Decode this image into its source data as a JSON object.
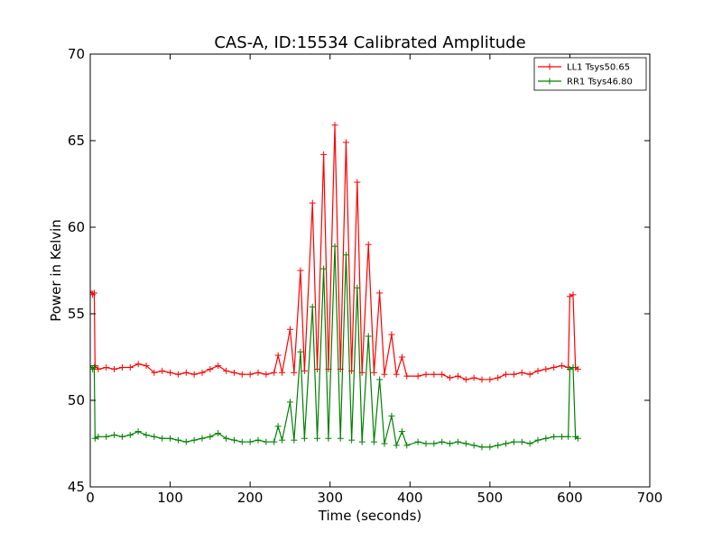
{
  "chart_data": {
    "type": "line",
    "title": "CAS-A, ID:15534 Calibrated Amplitude",
    "xlabel": "Time (seconds)",
    "ylabel": "Power in Kelvin",
    "xlim": [
      0,
      700
    ],
    "ylim": [
      45,
      70
    ],
    "xticks": [
      0,
      100,
      200,
      300,
      400,
      500,
      600,
      700
    ],
    "yticks": [
      45,
      50,
      55,
      60,
      65,
      70
    ],
    "grid": false,
    "legend_position": "top-right",
    "series": [
      {
        "name": "LL1 Tsys50.65",
        "color": "#ff0000",
        "marker": "+",
        "points": [
          [
            0,
            56.3
          ],
          [
            3,
            56.1
          ],
          [
            5,
            56.2
          ],
          [
            6,
            52.0
          ],
          [
            10,
            51.8
          ],
          [
            20,
            51.9
          ],
          [
            30,
            51.8
          ],
          [
            40,
            51.9
          ],
          [
            50,
            51.9
          ],
          [
            60,
            52.1
          ],
          [
            70,
            52.0
          ],
          [
            80,
            51.6
          ],
          [
            90,
            51.7
          ],
          [
            100,
            51.6
          ],
          [
            110,
            51.5
          ],
          [
            120,
            51.6
          ],
          [
            130,
            51.5
          ],
          [
            140,
            51.6
          ],
          [
            150,
            51.8
          ],
          [
            160,
            52.0
          ],
          [
            170,
            51.7
          ],
          [
            180,
            51.6
          ],
          [
            190,
            51.5
          ],
          [
            200,
            51.5
          ],
          [
            210,
            51.6
          ],
          [
            220,
            51.5
          ],
          [
            230,
            51.6
          ],
          [
            235,
            52.6
          ],
          [
            240,
            51.6
          ],
          [
            250,
            54.1
          ],
          [
            255,
            51.6
          ],
          [
            263,
            57.5
          ],
          [
            268,
            51.7
          ],
          [
            278,
            61.4
          ],
          [
            284,
            51.8
          ],
          [
            292,
            64.2
          ],
          [
            298,
            51.8
          ],
          [
            306,
            65.9
          ],
          [
            313,
            51.8
          ],
          [
            320,
            64.9
          ],
          [
            327,
            51.7
          ],
          [
            334,
            62.6
          ],
          [
            340,
            51.6
          ],
          [
            348,
            59.0
          ],
          [
            355,
            51.6
          ],
          [
            362,
            56.2
          ],
          [
            368,
            51.5
          ],
          [
            377,
            53.8
          ],
          [
            383,
            51.5
          ],
          [
            390,
            52.5
          ],
          [
            396,
            51.4
          ],
          [
            410,
            51.4
          ],
          [
            420,
            51.5
          ],
          [
            430,
            51.5
          ],
          [
            440,
            51.5
          ],
          [
            450,
            51.3
          ],
          [
            460,
            51.4
          ],
          [
            470,
            51.2
          ],
          [
            480,
            51.3
          ],
          [
            490,
            51.2
          ],
          [
            500,
            51.2
          ],
          [
            510,
            51.3
          ],
          [
            520,
            51.5
          ],
          [
            530,
            51.5
          ],
          [
            540,
            51.6
          ],
          [
            550,
            51.5
          ],
          [
            560,
            51.7
          ],
          [
            570,
            51.8
          ],
          [
            580,
            51.9
          ],
          [
            590,
            52.0
          ],
          [
            598,
            51.9
          ],
          [
            600,
            56.0
          ],
          [
            604,
            56.1
          ],
          [
            607,
            51.9
          ],
          [
            610,
            51.8
          ]
        ]
      },
      {
        "name": "RR1 Tsys46.80",
        "color": "#008000",
        "marker": "+",
        "points": [
          [
            0,
            52.0
          ],
          [
            3,
            51.8
          ],
          [
            5,
            51.9
          ],
          [
            6,
            47.8
          ],
          [
            10,
            47.9
          ],
          [
            20,
            47.9
          ],
          [
            30,
            48.0
          ],
          [
            40,
            47.9
          ],
          [
            50,
            48.0
          ],
          [
            60,
            48.2
          ],
          [
            70,
            48.0
          ],
          [
            80,
            47.9
          ],
          [
            90,
            47.8
          ],
          [
            100,
            47.8
          ],
          [
            110,
            47.7
          ],
          [
            120,
            47.6
          ],
          [
            130,
            47.7
          ],
          [
            140,
            47.8
          ],
          [
            150,
            47.9
          ],
          [
            160,
            48.1
          ],
          [
            170,
            47.8
          ],
          [
            180,
            47.7
          ],
          [
            190,
            47.6
          ],
          [
            200,
            47.6
          ],
          [
            210,
            47.7
          ],
          [
            220,
            47.6
          ],
          [
            230,
            47.6
          ],
          [
            235,
            48.5
          ],
          [
            240,
            47.7
          ],
          [
            250,
            49.9
          ],
          [
            255,
            47.7
          ],
          [
            263,
            52.8
          ],
          [
            268,
            47.8
          ],
          [
            278,
            55.4
          ],
          [
            284,
            47.8
          ],
          [
            292,
            57.6
          ],
          [
            298,
            47.8
          ],
          [
            306,
            58.9
          ],
          [
            313,
            47.8
          ],
          [
            320,
            58.4
          ],
          [
            327,
            47.7
          ],
          [
            334,
            56.5
          ],
          [
            340,
            47.6
          ],
          [
            348,
            53.7
          ],
          [
            355,
            47.6
          ],
          [
            362,
            51.2
          ],
          [
            368,
            47.5
          ],
          [
            377,
            49.1
          ],
          [
            383,
            47.4
          ],
          [
            390,
            48.2
          ],
          [
            396,
            47.4
          ],
          [
            410,
            47.6
          ],
          [
            420,
            47.5
          ],
          [
            430,
            47.5
          ],
          [
            440,
            47.6
          ],
          [
            450,
            47.5
          ],
          [
            460,
            47.6
          ],
          [
            470,
            47.5
          ],
          [
            480,
            47.4
          ],
          [
            490,
            47.3
          ],
          [
            500,
            47.3
          ],
          [
            510,
            47.4
          ],
          [
            520,
            47.5
          ],
          [
            530,
            47.6
          ],
          [
            540,
            47.6
          ],
          [
            550,
            47.5
          ],
          [
            560,
            47.7
          ],
          [
            570,
            47.8
          ],
          [
            580,
            47.9
          ],
          [
            590,
            47.9
          ],
          [
            598,
            47.9
          ],
          [
            600,
            51.8
          ],
          [
            604,
            51.9
          ],
          [
            607,
            47.9
          ],
          [
            610,
            47.8
          ]
        ]
      }
    ]
  }
}
